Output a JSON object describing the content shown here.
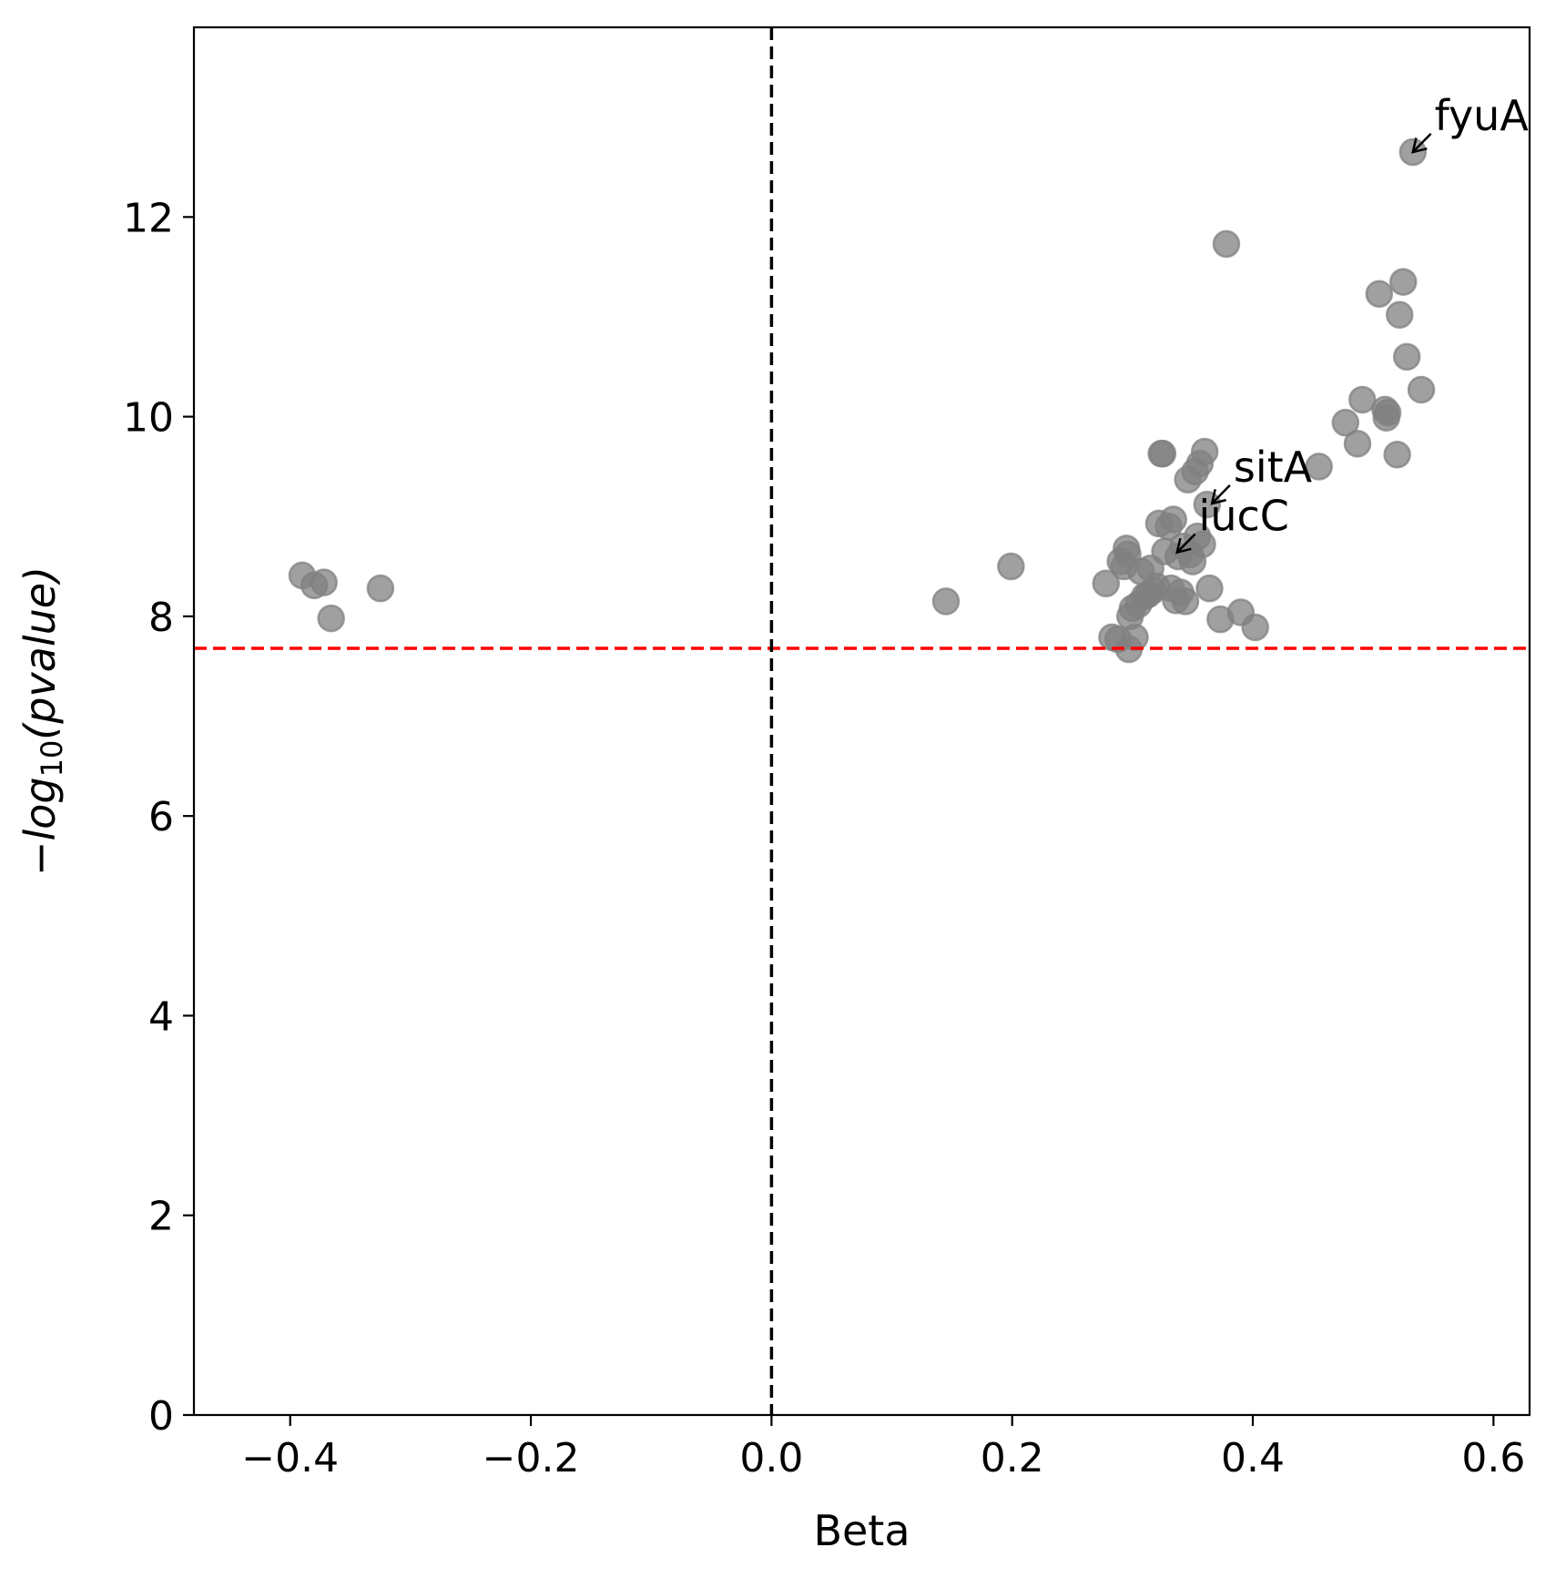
{
  "chart_data": {
    "type": "scatter",
    "xlabel": "Beta",
    "ylabel_prefix": "−",
    "ylabel_base": "log",
    "ylabel_sub": "10",
    "ylabel_arg": "(pvalue)",
    "xlim": [
      -0.48,
      0.63
    ],
    "ylim": [
      0,
      13.9
    ],
    "xticks": [
      -0.4,
      -0.2,
      0.0,
      0.2,
      0.4,
      0.6
    ],
    "xtick_labels": [
      "−0.4",
      "−0.2",
      "0.0",
      "0.2",
      "0.4",
      "0.6"
    ],
    "yticks": [
      0,
      2,
      4,
      6,
      8,
      10,
      12
    ],
    "ytick_labels": [
      "0",
      "2",
      "4",
      "6",
      "8",
      "10",
      "12"
    ],
    "threshold_y": 7.68,
    "threshold_color": "#ff0000",
    "zero_line_x": 0.0,
    "zero_line_color": "#000000",
    "point_color": "#808080",
    "point_alpha": 0.75,
    "grid": false,
    "points": [
      {
        "x": -0.39,
        "y": 8.41
      },
      {
        "x": -0.38,
        "y": 8.31
      },
      {
        "x": -0.372,
        "y": 8.34
      },
      {
        "x": -0.366,
        "y": 7.98
      },
      {
        "x": -0.325,
        "y": 8.28
      },
      {
        "x": 0.145,
        "y": 8.15
      },
      {
        "x": 0.199,
        "y": 8.5
      },
      {
        "x": 0.278,
        "y": 8.33
      },
      {
        "x": 0.283,
        "y": 7.79
      },
      {
        "x": 0.288,
        "y": 7.77
      },
      {
        "x": 0.29,
        "y": 8.55
      },
      {
        "x": 0.293,
        "y": 8.5
      },
      {
        "x": 0.295,
        "y": 8.68
      },
      {
        "x": 0.296,
        "y": 8.62
      },
      {
        "x": 0.297,
        "y": 7.67
      },
      {
        "x": 0.298,
        "y": 8.0
      },
      {
        "x": 0.3,
        "y": 8.08
      },
      {
        "x": 0.302,
        "y": 7.79
      },
      {
        "x": 0.305,
        "y": 8.12
      },
      {
        "x": 0.307,
        "y": 8.45
      },
      {
        "x": 0.31,
        "y": 8.2
      },
      {
        "x": 0.313,
        "y": 8.22
      },
      {
        "x": 0.315,
        "y": 8.48
      },
      {
        "x": 0.317,
        "y": 8.26
      },
      {
        "x": 0.32,
        "y": 8.3
      },
      {
        "x": 0.322,
        "y": 8.93
      },
      {
        "x": 0.324,
        "y": 9.63
      },
      {
        "x": 0.325,
        "y": 9.63
      },
      {
        "x": 0.327,
        "y": 8.65
      },
      {
        "x": 0.33,
        "y": 8.9
      },
      {
        "x": 0.332,
        "y": 8.28
      },
      {
        "x": 0.334,
        "y": 8.97
      },
      {
        "x": 0.336,
        "y": 8.16
      },
      {
        "x": 0.338,
        "y": 8.6
      },
      {
        "x": 0.34,
        "y": 8.24
      },
      {
        "x": 0.342,
        "y": 8.7
      },
      {
        "x": 0.344,
        "y": 8.15
      },
      {
        "x": 0.346,
        "y": 9.37
      },
      {
        "x": 0.348,
        "y": 8.62
      },
      {
        "x": 0.35,
        "y": 8.55
      },
      {
        "x": 0.352,
        "y": 9.45
      },
      {
        "x": 0.354,
        "y": 8.8
      },
      {
        "x": 0.356,
        "y": 9.53
      },
      {
        "x": 0.358,
        "y": 8.72
      },
      {
        "x": 0.36,
        "y": 9.65
      },
      {
        "x": 0.362,
        "y": 9.12
      },
      {
        "x": 0.364,
        "y": 8.28
      },
      {
        "x": 0.373,
        "y": 7.97
      },
      {
        "x": 0.378,
        "y": 11.73
      },
      {
        "x": 0.39,
        "y": 8.04
      },
      {
        "x": 0.402,
        "y": 7.89
      },
      {
        "x": 0.455,
        "y": 9.5
      },
      {
        "x": 0.477,
        "y": 9.94
      },
      {
        "x": 0.487,
        "y": 9.73
      },
      {
        "x": 0.491,
        "y": 10.17
      },
      {
        "x": 0.505,
        "y": 11.23
      },
      {
        "x": 0.51,
        "y": 10.07
      },
      {
        "x": 0.511,
        "y": 9.99
      },
      {
        "x": 0.512,
        "y": 10.04
      },
      {
        "x": 0.52,
        "y": 9.62
      },
      {
        "x": 0.522,
        "y": 11.02
      },
      {
        "x": 0.525,
        "y": 11.35
      },
      {
        "x": 0.528,
        "y": 10.6
      },
      {
        "x": 0.533,
        "y": 12.65
      },
      {
        "x": 0.54,
        "y": 10.27
      }
    ],
    "annotations": [
      {
        "text": "fyuA",
        "x": 0.533,
        "y": 12.65,
        "tx": 0.551,
        "ty": 12.87
      },
      {
        "text": "sitA",
        "x": 0.366,
        "y": 9.13,
        "tx": 0.384,
        "ty": 9.35
      },
      {
        "text": "iucC",
        "x": 0.337,
        "y": 8.64,
        "tx": 0.355,
        "ty": 8.86
      }
    ]
  }
}
